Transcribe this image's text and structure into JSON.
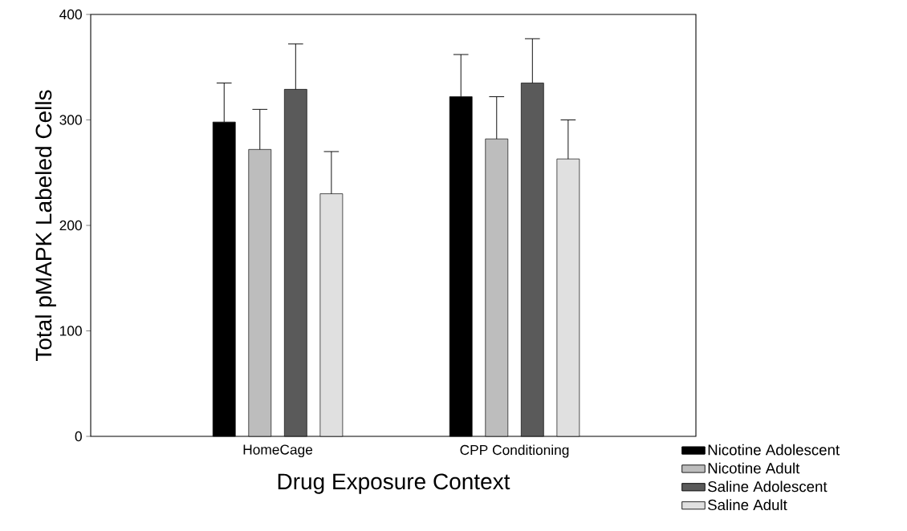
{
  "chart_data": {
    "type": "bar",
    "xlabel": "Drug Exposure Context",
    "ylabel": "Total pMAPK Labeled Cells",
    "categories": [
      "HomeCage",
      "CPP Conditioning"
    ],
    "series": [
      {
        "name": "Nicotine Adolescent",
        "color": "#000000",
        "values": [
          298,
          322
        ],
        "errors": [
          [
            298,
            335
          ],
          [
            322,
            362
          ]
        ]
      },
      {
        "name": "Nicotine Adult",
        "color": "#bdbdbd",
        "values": [
          272,
          282
        ],
        "errors": [
          [
            272,
            310
          ],
          [
            282,
            322
          ]
        ]
      },
      {
        "name": "Saline Adolescent",
        "color": "#5a5a5a",
        "values": [
          329,
          335
        ],
        "errors": [
          [
            329,
            372
          ],
          [
            335,
            377
          ]
        ]
      },
      {
        "name": "Saline Adult",
        "color": "#e0e0e0",
        "values": [
          230,
          263
        ],
        "errors": [
          [
            230,
            270
          ],
          [
            263,
            300
          ]
        ]
      }
    ],
    "ylim": [
      0,
      400
    ],
    "yticks": [
      0,
      100,
      200,
      300,
      400
    ],
    "grid": false,
    "legend": "bottom right"
  }
}
